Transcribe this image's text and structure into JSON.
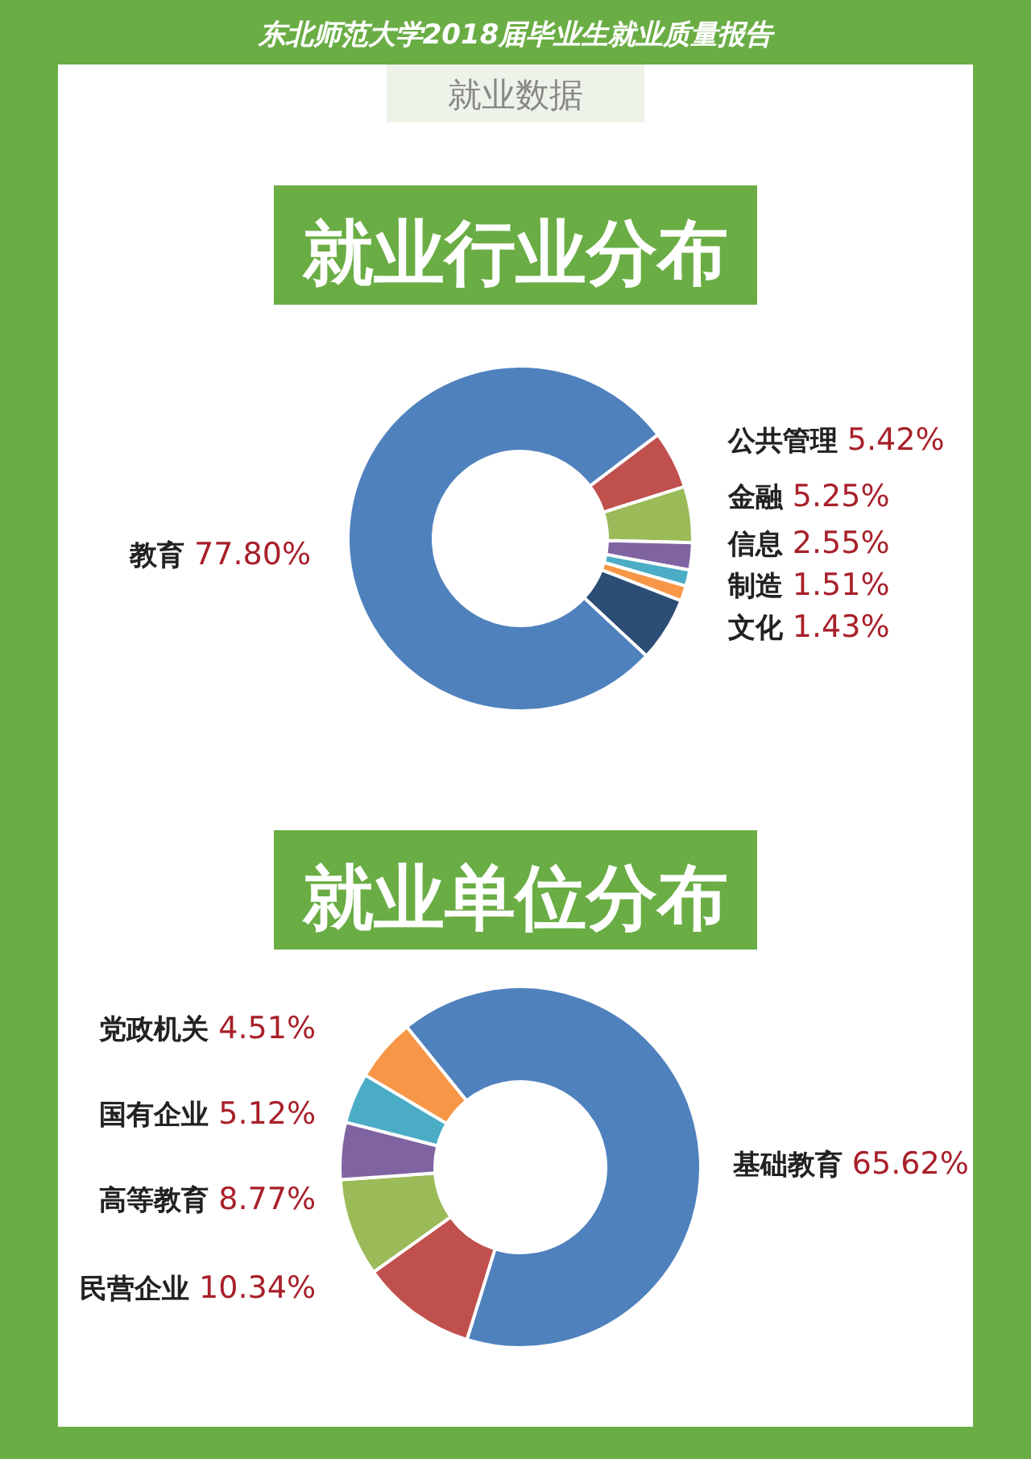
{
  "chart_data": [
    {
      "type": "donut",
      "title": "就业行业分布",
      "annotations": [
        "东北师范大学2018届毕业生就业质量报告",
        "就业数据"
      ],
      "categories": [
        "公共管理",
        "金融",
        "信息",
        "制造",
        "文化",
        null,
        "教育"
      ],
      "values": [
        5.42,
        5.25,
        2.55,
        1.51,
        1.43,
        6.04,
        77.8
      ],
      "value_labels": [
        "5.42%",
        "5.25%",
        "2.55%",
        "1.51%",
        "1.43%",
        null,
        "77.80%"
      ],
      "colors": [
        "#c0504d",
        "#9bbb59",
        "#8064a2",
        "#4bacc6",
        "#f79646",
        "#2c4d75",
        "#4f81bd"
      ]
    },
    {
      "type": "donut",
      "title": "就业单位分布",
      "categories": [
        "基础教育",
        "民营企业",
        "高等教育",
        "国有企业",
        "党政机关",
        null
      ],
      "values": [
        65.62,
        10.34,
        8.77,
        5.12,
        4.51,
        5.64
      ],
      "value_labels": [
        "65.62%",
        "10.34%",
        "8.77%",
        "5.12%",
        "4.51%",
        null
      ],
      "colors": [
        "#4f81bd",
        "#c0504d",
        "#9bbb59",
        "#8064a2",
        "#4bacc6",
        "#f79646"
      ]
    }
  ]
}
